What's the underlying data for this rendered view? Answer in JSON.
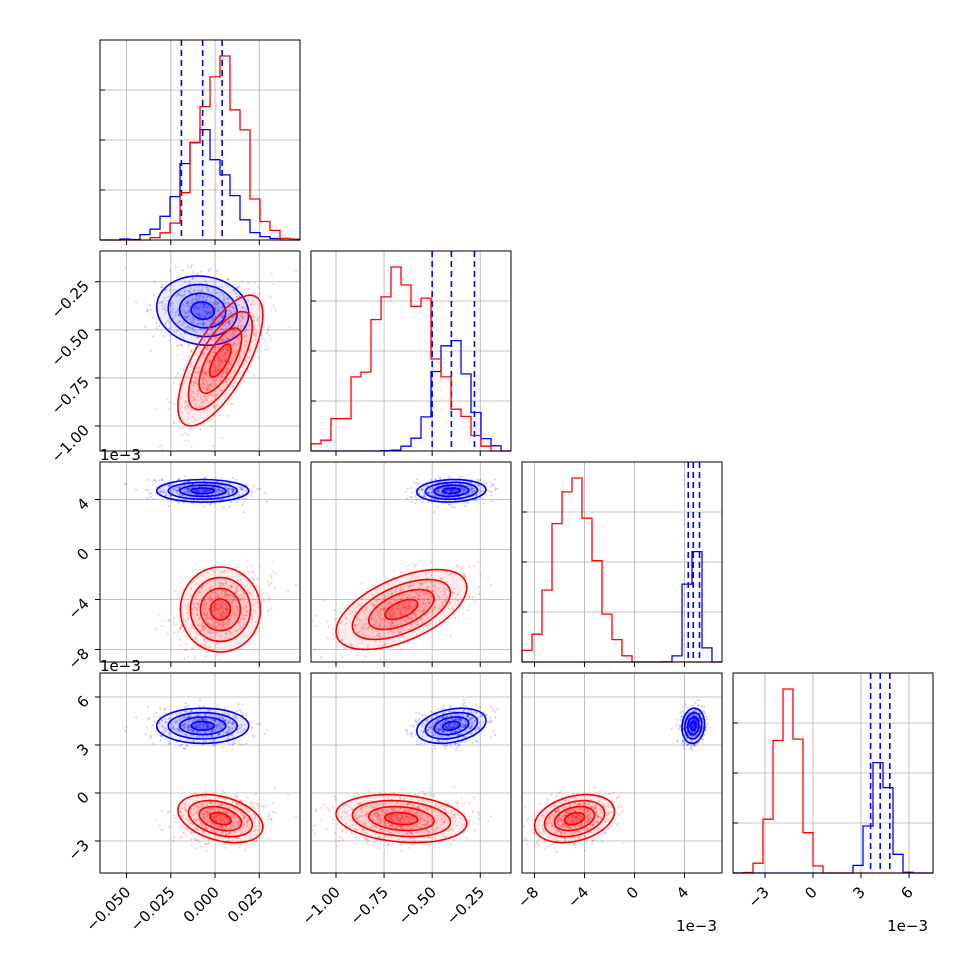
{
  "chart_data": {
    "type": "corner",
    "description_of_layout": "lower-triangular 4x4 corner plot; diagonal = 1D histograms, off-diagonal = 2D density contours with scatter",
    "grid": true,
    "parameters": [
      {
        "range": [
          -0.065,
          0.048
        ],
        "ticks": [
          -0.05,
          -0.025,
          0.0,
          0.025
        ],
        "tick_labels": [
          "−0.050",
          "−0.025",
          "0.000",
          "0.025"
        ],
        "offset": ""
      },
      {
        "range": [
          -1.13,
          -0.09
        ],
        "ticks": [
          -1.0,
          -0.75,
          -0.5,
          -0.25
        ],
        "tick_labels": [
          "−1.00",
          "−0.75",
          "−0.50",
          "−0.25"
        ],
        "offset": ""
      },
      {
        "range": [
          -9.0,
          7.0
        ],
        "ticks": [
          -8,
          -4,
          0,
          4
        ],
        "tick_labels": [
          "−8",
          "−4",
          "0",
          "4"
        ],
        "offset": "1e−3"
      },
      {
        "range": [
          -5.0,
          7.5
        ],
        "ticks": [
          -3,
          0,
          3,
          6
        ],
        "tick_labels": [
          "−3",
          "0",
          "3",
          "6"
        ],
        "offset": "1e−3"
      }
    ],
    "series": [
      {
        "name": "",
        "color": "#0000ff",
        "means": [
          -0.007,
          -0.4,
          4.7,
          4.2
        ],
        "sds": [
          0.013,
          0.09,
          0.45,
          0.55
        ],
        "rhos": {
          "0-1": -0.1,
          "0-2": 0.0,
          "0-3": 0.0,
          "1-2": 0.1,
          "1-3": 0.3,
          "2-3": 0.1
        },
        "quantiles": [
          [
            -0.019,
            -0.007,
            0.004
          ],
          [
            -0.5,
            -0.4,
            -0.28
          ],
          [
            4.3,
            4.7,
            5.2
          ],
          [
            3.6,
            4.2,
            4.8
          ]
        ],
        "hist_scale": 0.6
      },
      {
        "name": "",
        "color": "#ff0000",
        "means": [
          0.003,
          -0.66,
          -4.8,
          -1.6
        ],
        "sds": [
          0.012,
          0.17,
          1.6,
          0.75
        ],
        "rhos": {
          "0-1": 0.7,
          "0-2": 0.0,
          "0-3": -0.35,
          "1-2": 0.55,
          "1-3": -0.2,
          "2-3": 0.3
        },
        "quantiles": [],
        "hist_scale": 1.0
      }
    ]
  }
}
